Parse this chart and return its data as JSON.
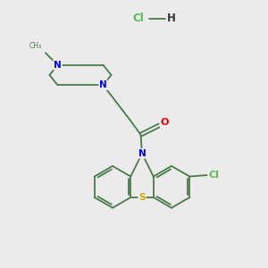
{
  "background_color": "#ebebeb",
  "bond_color": "#4a7a4a",
  "N_color": "#0000ee",
  "O_color": "#dd0000",
  "S_color": "#ccaa00",
  "Cl_color": "#55bb55",
  "figsize": [
    3.0,
    3.0
  ],
  "dpi": 100,
  "xlim": [
    0,
    10
  ],
  "ylim": [
    0,
    10
  ]
}
